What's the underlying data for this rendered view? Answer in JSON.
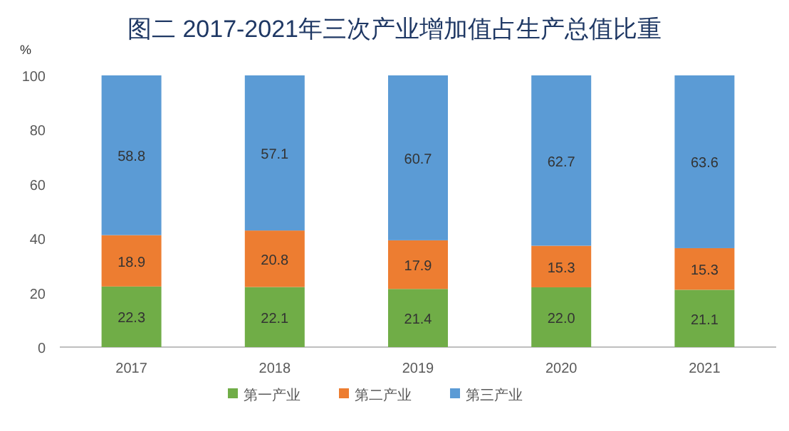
{
  "chart_data": {
    "type": "bar",
    "title": "图二 2017-2021年三次产业增加值占生产总值比重",
    "ylabel": "%",
    "categories": [
      "2017",
      "2018",
      "2019",
      "2020",
      "2021"
    ],
    "stacked": true,
    "legend": "bottom",
    "ylim": [
      0,
      100
    ],
    "yticks": [
      0,
      20,
      40,
      60,
      80,
      100
    ],
    "series": [
      {
        "name": "第一产业",
        "color": "#70ad47",
        "values": [
          22.3,
          22.1,
          21.4,
          22.0,
          21.1
        ],
        "value_labels": [
          "22.3",
          "22.1",
          "21.4",
          "22.0",
          "21.1"
        ]
      },
      {
        "name": "第二产业",
        "color": "#ed7d31",
        "values": [
          18.9,
          20.8,
          17.9,
          15.3,
          15.3
        ],
        "value_labels": [
          "18.9",
          "20.8",
          "17.9",
          "15.3",
          "15.3"
        ]
      },
      {
        "name": "第三产业",
        "color": "#5b9bd5",
        "values": [
          58.8,
          57.1,
          60.7,
          62.7,
          63.6
        ],
        "value_labels": [
          "58.8",
          "57.1",
          "60.7",
          "62.7",
          "63.6"
        ]
      }
    ]
  }
}
